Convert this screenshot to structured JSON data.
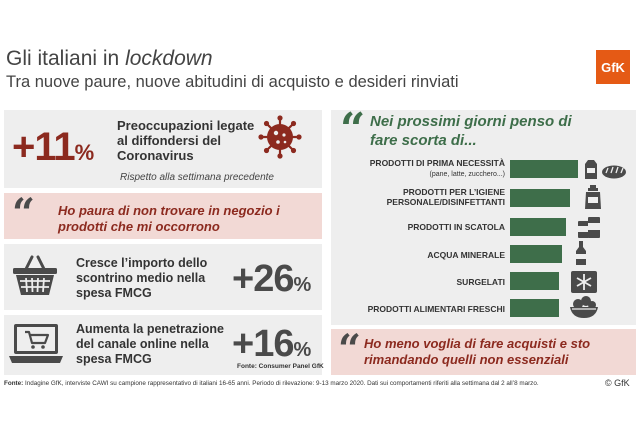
{
  "header": {
    "title_prefix": "Gli italiani in ",
    "title_emph": "lockdown",
    "subtitle": "Tra nuove paure, nuove abitudini di acquisto e desideri rinviati",
    "logo": "GfK"
  },
  "panel_concern": {
    "value": "+11",
    "unit": "%",
    "text": "Preoccupazioni legate al diffondersi del Coronavirus",
    "note": "Rispetto alla settimana precedente",
    "icon": "virus-icon"
  },
  "panel_fear": {
    "text": "Ho paura di non trovare in negozio i prodotti che mi occorrono"
  },
  "panel_receipt": {
    "text": "Cresce l’importo dello scontrino medio nella spesa FMCG",
    "value": "+26",
    "unit": "%",
    "icon": "shopping-basket-icon"
  },
  "panel_online": {
    "text": "Aumenta la penetrazione del canale online nella spesa FMCG",
    "value": "+16",
    "unit": "%",
    "source": "Fonte: Consumer Panel GfK",
    "icon": "laptop-cart-icon"
  },
  "panel_stock": {
    "heading": "Nei prossimi giorni penso di fare scorta di...",
    "items": [
      {
        "label": "PRODOTTI DI PRIMA NECESSITÀ",
        "sub": "(pane, latte, zucchero...)",
        "value": 1.0,
        "icon": "bread-milk-icon"
      },
      {
        "label": "PRODOTTI PER L’IGIENE PERSONALE/DISINFETTANTI",
        "line1": "PRODOTTI PER L’IGIENE",
        "line2": "PERSONALE/DISINFETTANTI",
        "value": 0.88,
        "icon": "soap-bottle-icon"
      },
      {
        "label": "PRODOTTI IN SCATOLA",
        "value": 0.83,
        "icon": "canned-food-icon"
      },
      {
        "label": "ACQUA MINERALE",
        "value": 0.76,
        "icon": "water-bottle-icon"
      },
      {
        "label": "SURGELATI",
        "value": 0.72,
        "icon": "snowflake-icon"
      },
      {
        "label": "PRODOTTI ALIMENTARI FRESCHI",
        "value": 0.72,
        "icon": "fresh-food-bowl-icon"
      }
    ]
  },
  "panel_postpone": {
    "text": "Ho meno voglia di fare acquisti e sto rimandando quelli non essenziali"
  },
  "footer": {
    "source_label": "Fonte:",
    "source_text": " Indagine GfK, interviste CAWI su campione rappresentativo di italiani 16-65 anni. Periodo di rilevazione: 9-13 marzo 2020. Dati sui comportamenti riferiti alla settimana dal 2 all’8 marzo.",
    "copyright": "© GfK"
  },
  "colors": {
    "dark_red": "#8c2a1f",
    "green": "#3e6e4a",
    "grey_panel": "#eeeeee",
    "pink_panel": "#f2d9d5",
    "gfk_orange": "#e55a15"
  }
}
